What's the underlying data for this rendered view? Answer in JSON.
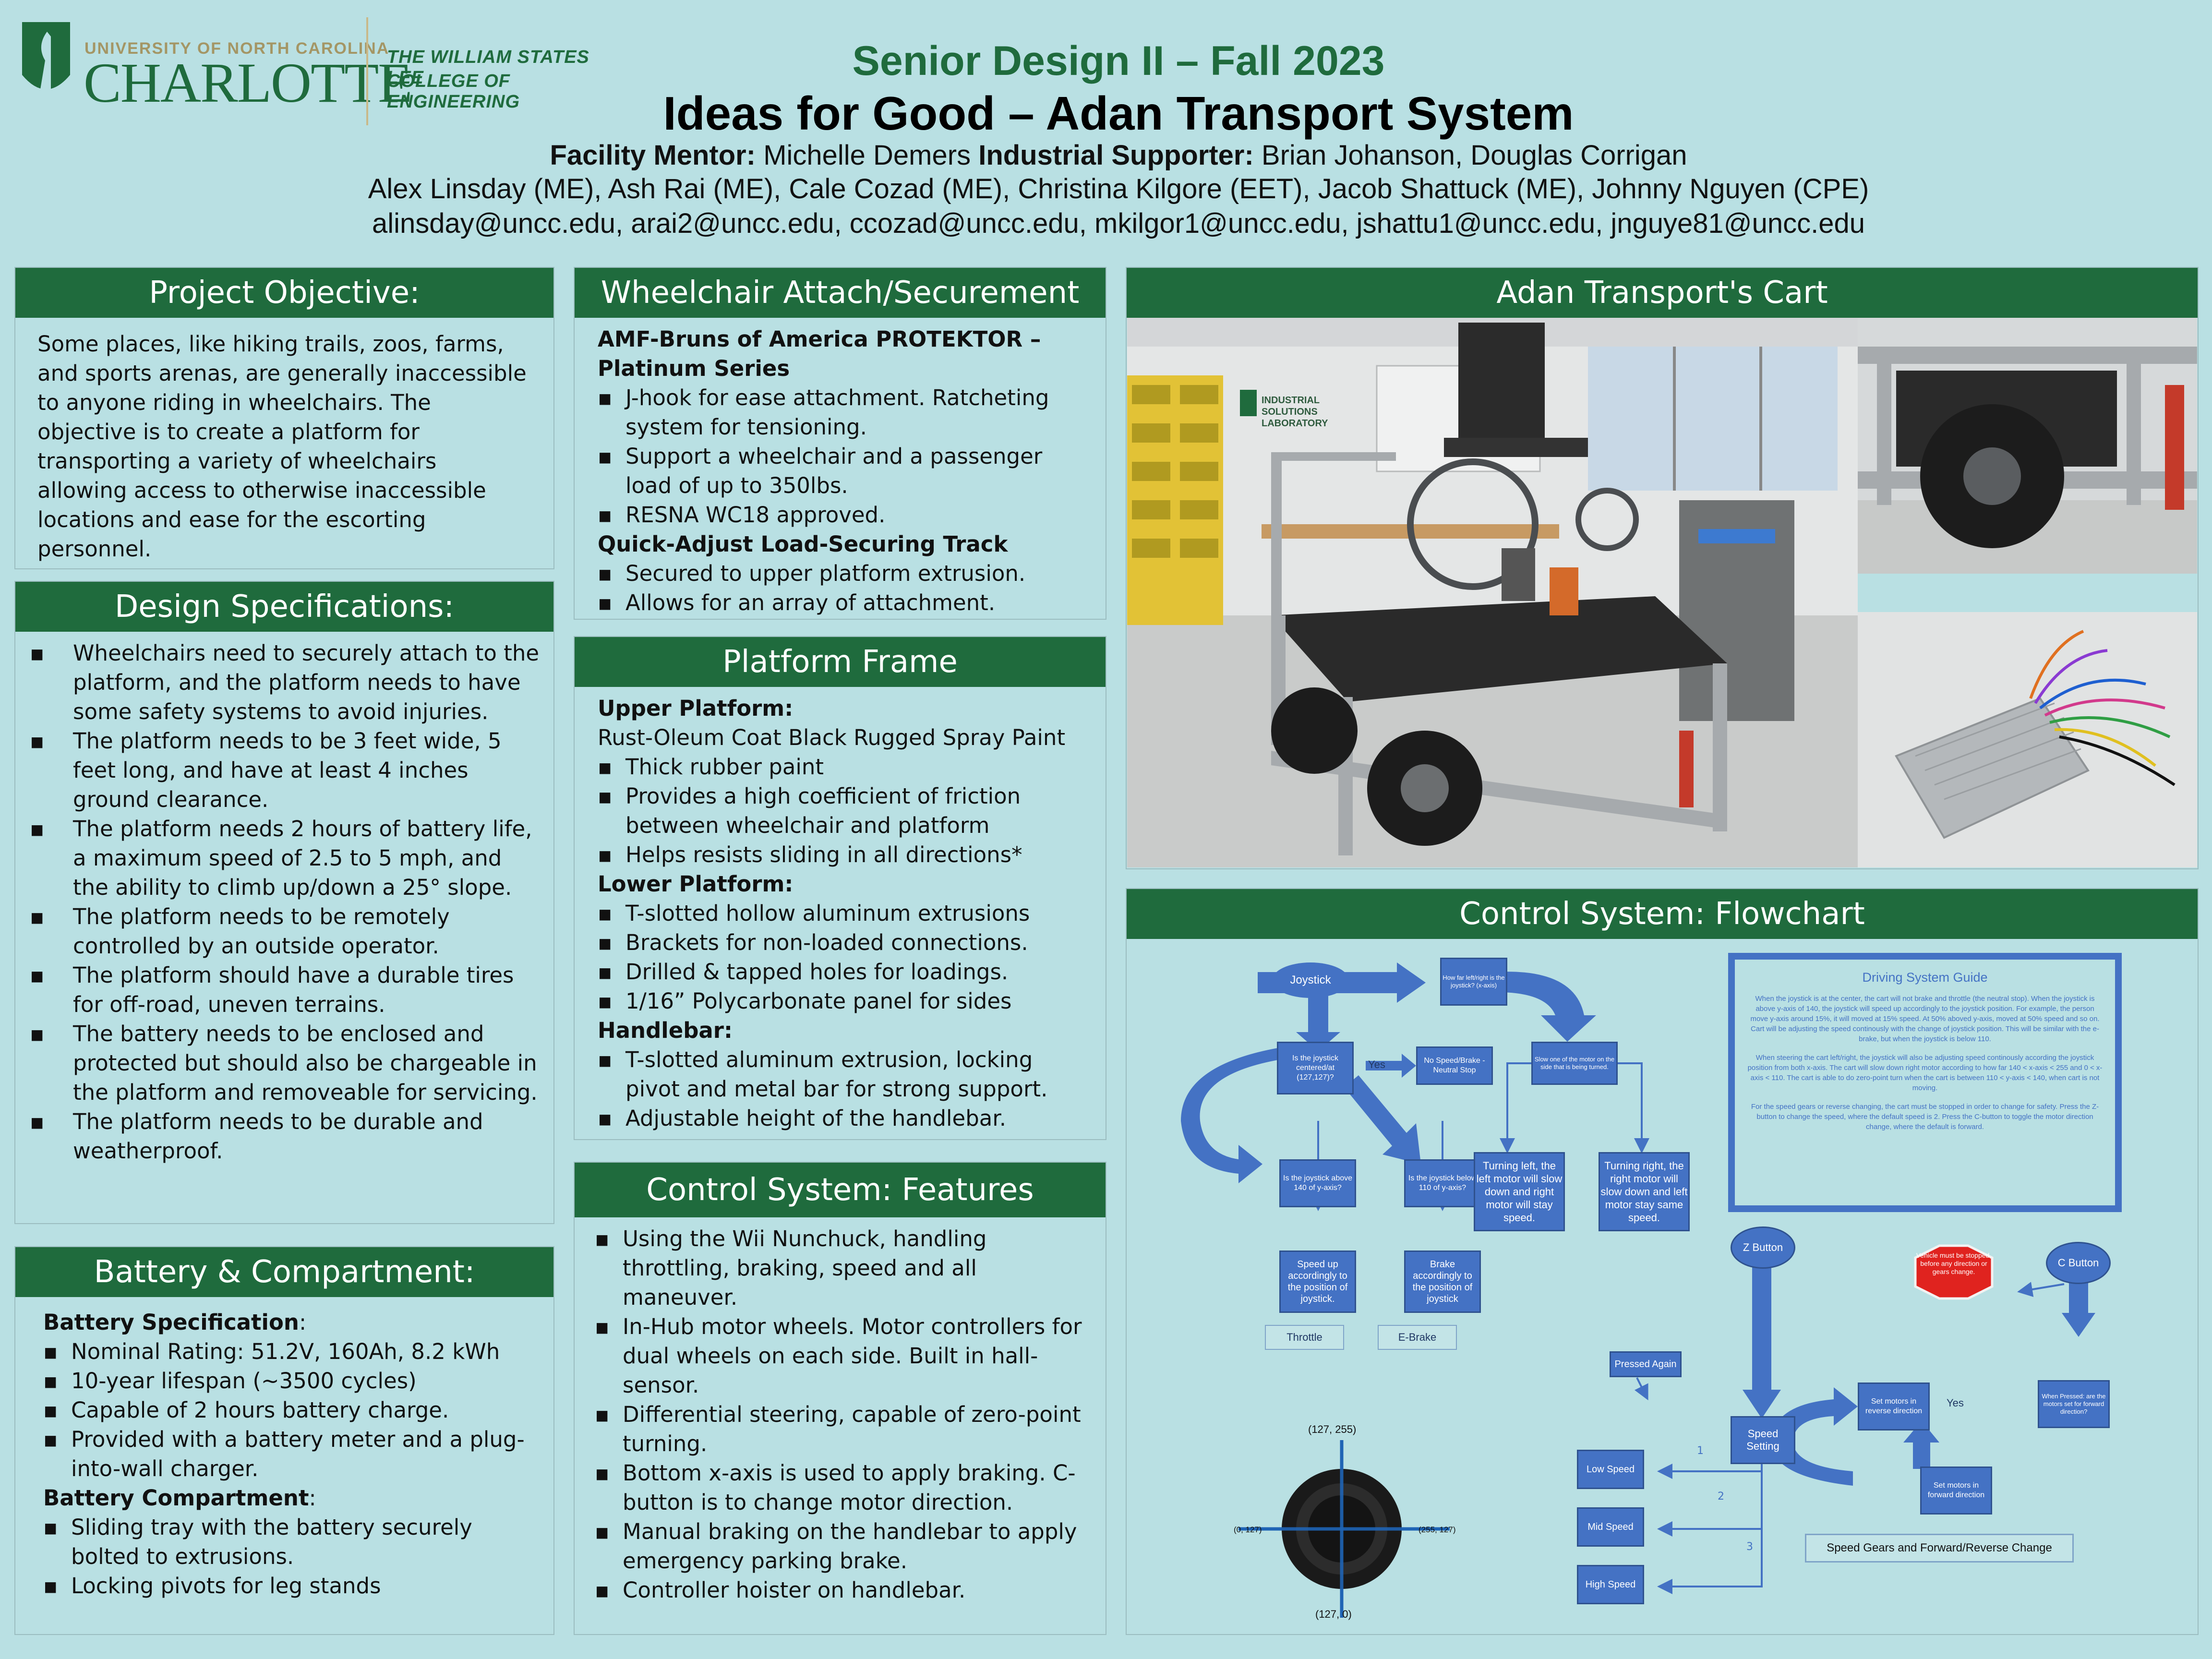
{
  "header": {
    "logo": {
      "university": "UNIVERSITY OF NORTH CAROLINA",
      "name": "CHARLOTTE",
      "college_line1": "THE WILLIAM STATES LEE",
      "college_line2": "COLLEGE OF ENGINEERING"
    },
    "course": "Senior Design II – Fall 2023",
    "title": "Ideas for Good – Adan Transport System",
    "mentor_label": "Facility Mentor:",
    "mentor_name": "Michelle Demers",
    "supporter_label": "Industrial Supporter:",
    "supporter_names": "Brian Johanson, Douglas Corrigan",
    "team": "Alex Linsday (ME), Ash Rai (ME), Cale Cozad (ME), Christina Kilgore (EET), Jacob Shattuck (ME), Johnny Nguyen (CPE)",
    "emails": "alinsday@uncc.edu, arai2@uncc.edu, ccozad@uncc.edu, mkilgor1@uncc.edu, jshattu1@uncc.edu, jnguye81@uncc.edu"
  },
  "objective": {
    "title": "Project Objective:",
    "text": "Some places, like hiking trails, zoos, farms, and sports arenas, are generally inaccessible to anyone riding in wheelchairs. The objective is to create a platform for transporting a variety of wheelchairs allowing access to otherwise inaccessible locations and ease for the escorting personnel."
  },
  "specs": {
    "title": "Design Specifications:",
    "items": [
      "Wheelchairs need to securely attach to the platform, and the platform needs to have some safety systems to avoid injuries.",
      "The platform needs to be 3 feet wide, 5 feet long, and have at least 4 inches ground clearance.",
      "The platform needs 2 hours of battery life, a maximum speed of 2.5 to 5 mph, and the ability to climb up/down a 25° slope.",
      "The platform needs to be remotely controlled by an outside operator.",
      "The platform should have a durable tires for off-road, uneven terrains.",
      "The battery needs to be enclosed and protected but should also be chargeable in the platform and removeable for servicing.",
      "The platform needs to be durable and weatherproof."
    ]
  },
  "battery": {
    "title": "Battery & Compartment:",
    "spec_label": "Battery Specification",
    "spec_items": [
      "Nominal Rating: 51.2V, 160Ah, 8.2 kWh",
      "10-year lifespan (~3500 cycles)",
      "Capable of 2 hours battery charge.",
      "Provided with a battery meter and a plug-into-wall charger."
    ],
    "comp_label": "Battery Compartment",
    "comp_items": [
      "Sliding tray with the battery securely bolted to extrusions.",
      "Locking pivots for leg stands"
    ]
  },
  "wheelchair": {
    "title": "Wheelchair Attach/Securement",
    "product": "AMF-Bruns of America PROTEKTOR – Platinum Series",
    "product_items": [
      "J-hook for ease attachment. Ratcheting system for tensioning.",
      "Support a wheelchair and a passenger load of up to 350lbs.",
      "RESNA WC18 approved."
    ],
    "track": "Quick-Adjust Load-Securing Track",
    "track_items": [
      "Secured to upper platform extrusion.",
      "Allows for an array of attachment."
    ]
  },
  "frame": {
    "title": "Platform Frame",
    "upper_label": "Upper Platform:",
    "upper_text": "Rust-Oleum Coat Black Rugged Spray Paint",
    "upper_items": [
      "Thick rubber paint",
      "Provides a high coefficient of friction between wheelchair and platform",
      "Helps resists sliding in all directions*"
    ],
    "lower_label": "Lower Platform:",
    "lower_items": [
      "T-slotted hollow aluminum extrusions",
      "Brackets for non-loaded connections.",
      "Drilled & tapped holes for loadings.",
      "1/16” Polycarbonate panel for sides"
    ],
    "handle_label": "Handlebar:",
    "handle_items": [
      "T-slotted aluminum extrusion, locking pivot and metal bar for strong support.",
      "Adjustable height of the handlebar."
    ]
  },
  "features": {
    "title": "Control System: Features",
    "items": [
      "Using the Wii Nunchuck, handling throttling, braking, speed and all maneuver.",
      "In-Hub motor wheels. Motor controllers for dual wheels on each side. Built in hall-sensor.",
      "Differential steering, capable of zero-point turning.",
      "Bottom x-axis is used to apply braking. C-button is to change motor direction.",
      "Manual braking on the handlebar to apply emergency parking brake.",
      "Controller hoister on handlebar."
    ]
  },
  "cart": {
    "title": "Adan Transport's Cart",
    "lab_sign": "INDUSTRIAL SOLUTIONS LABORATORY"
  },
  "flowchart": {
    "title": "Control System: Flowchart",
    "joystick": "Joystick",
    "centered": "Is the joystick centered/at (127,127)?",
    "yes1": "Yes",
    "neutral": "No Speed/Brake - Neutral Stop",
    "leftright": "How far left/right is the joystick? (x-axis)",
    "slow_side": "Slow one of the motor on the side that is being turned.",
    "above": "Is the joystick above 140 of y-axis?",
    "below": "Is the joystick below 110 of y-axis?",
    "speedup": "Speed up accordingly to the position of joystick.",
    "brake": "Brake accordingly to the position of joystick",
    "throttle": "Throttle",
    "ebrake": "E-Brake",
    "turn_left": "Turning left, the left motor will slow down and right motor will stay speed.",
    "turn_right": "Turning right, the right motor will slow down and left motor stay same speed.",
    "guide_title": "Driving System Guide",
    "guide_p1": "When the joystick is at the center, the cart will not brake and throttle (the neutral stop). When the joystick is above y-axis of 140, the joystick will speed up accordingly to the joystick position. For example, the person move y-axis around 15%, it will moved at 15% speed. At 50% aboved y-axis, moved at 50% speed and so on. Cart will be adjusting the speed continously with the change of joystick position. This will be similar with the e-brake, but when the joystick is below 110.",
    "guide_p2": "When steering the cart left/right, the joystick will also be adjusting speed continously according the joystick position from both x-axis. The cart will slow down right motor according to how far 140 < x-axis < 255 and 0 < x-axis < 110. The cart is able to do zero-point turn when the cart is between 110 < y-axis < 140, when cart is not moving.",
    "guide_p3": "For the speed gears or reverse changing, the cart must be stopped in order to change for safety. Press the Z-button to change the speed, where the default speed is 2. Press the C-button to toggle the motor direction change, where the default is forward.",
    "coord_top": "(127, 255)",
    "coord_left": "(0, 127)",
    "coord_right": "(255, 127)",
    "coord_bottom": "(127, 0)",
    "z_button": "Z Button",
    "c_button": "C Button",
    "stop_sign": "Vehicle must be stopped, before any direction or gears change.",
    "pressed_again": "Pressed Again",
    "speed_setting": "Speed Setting",
    "when_pressed": "When Pressed: are the motors set for forward direction?",
    "yes2": "Yes",
    "set_reverse": "Set motors in reverse direction",
    "set_forward": "Set motors in forward direction",
    "n1": "1",
    "n2": "2",
    "n3": "3",
    "low": "Low Speed",
    "mid": "Mid Speed",
    "high": "High Speed",
    "gears_caption": "Speed Gears and Forward/Reverse Change"
  }
}
